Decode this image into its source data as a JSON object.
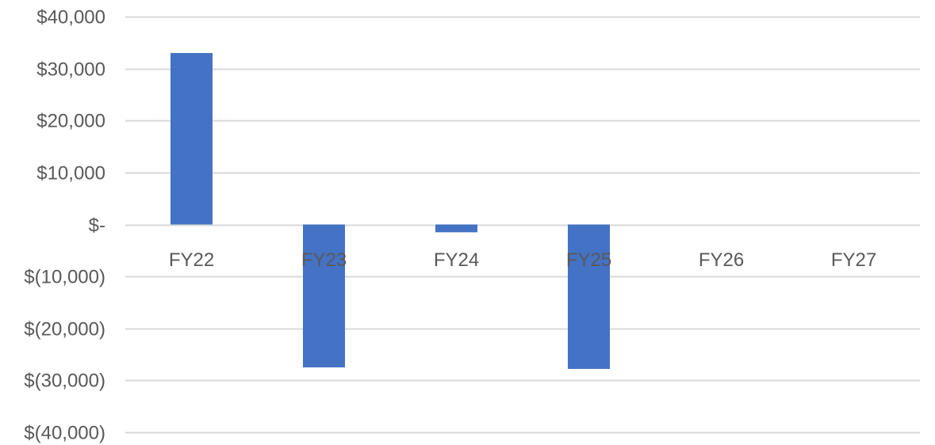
{
  "chart_data": {
    "type": "bar",
    "categories": [
      "FY22",
      "FY23",
      "FY24",
      "FY25",
      "FY26",
      "FY27"
    ],
    "values": [
      33000,
      -27500,
      -1500,
      -27800,
      0,
      0
    ],
    "ylim": [
      -40000,
      40000
    ],
    "yticks": [
      40000,
      30000,
      20000,
      10000,
      0,
      -10000,
      -20000,
      -30000,
      -40000
    ],
    "ytick_labels": [
      "$40,000",
      "$30,000",
      "$20,000",
      "$10,000",
      "$-",
      "$(10,000)",
      "$(20,000)",
      "$(30,000)",
      "$(40,000)"
    ],
    "grid": true,
    "bar_color": "#4472c4",
    "grid_color": "#d9d9d9",
    "label_color": "#595959"
  }
}
